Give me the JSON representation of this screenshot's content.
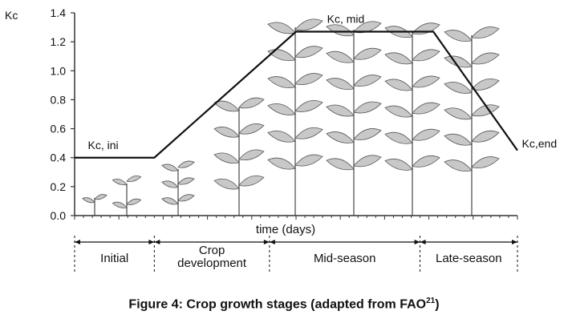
{
  "chart_data": {
    "type": "line",
    "ylabel": "Kc",
    "xlabel": "time (days)",
    "ylim": [
      0.0,
      1.4
    ],
    "yticks": [
      "0.0",
      "0.2",
      "0.4",
      "0.6",
      "0.8",
      "1.0",
      "1.2",
      "1.4"
    ],
    "series": [
      {
        "values": [
          {
            "x": 0,
            "y": 0.4
          },
          {
            "x": 18,
            "y": 0.4
          },
          {
            "x": 50,
            "y": 1.27
          },
          {
            "x": 81,
            "y": 1.27
          },
          {
            "x": 100,
            "y": 0.45
          }
        ]
      }
    ],
    "annotations": [
      {
        "text": "Kc, ini",
        "x": 3,
        "y": 0.46
      },
      {
        "text": "Kc, mid",
        "x": 57,
        "y": 1.33
      },
      {
        "text": "Kc,end",
        "x": 101,
        "y": 0.47
      }
    ],
    "stages": [
      {
        "label_lines": [
          "Initial"
        ],
        "start": 0,
        "end": 18
      },
      {
        "label_lines": [
          "Crop",
          "development"
        ],
        "start": 18,
        "end": 44
      },
      {
        "label_lines": [
          "Mid-season"
        ],
        "start": 44,
        "end": 78
      },
      {
        "label_lines": [
          "Late-season"
        ],
        "start": 78,
        "end": 100
      }
    ]
  },
  "caption": {
    "text": "Figure 4: Crop growth stages (adapted from FAO",
    "ref": "21",
    "close": ")"
  }
}
